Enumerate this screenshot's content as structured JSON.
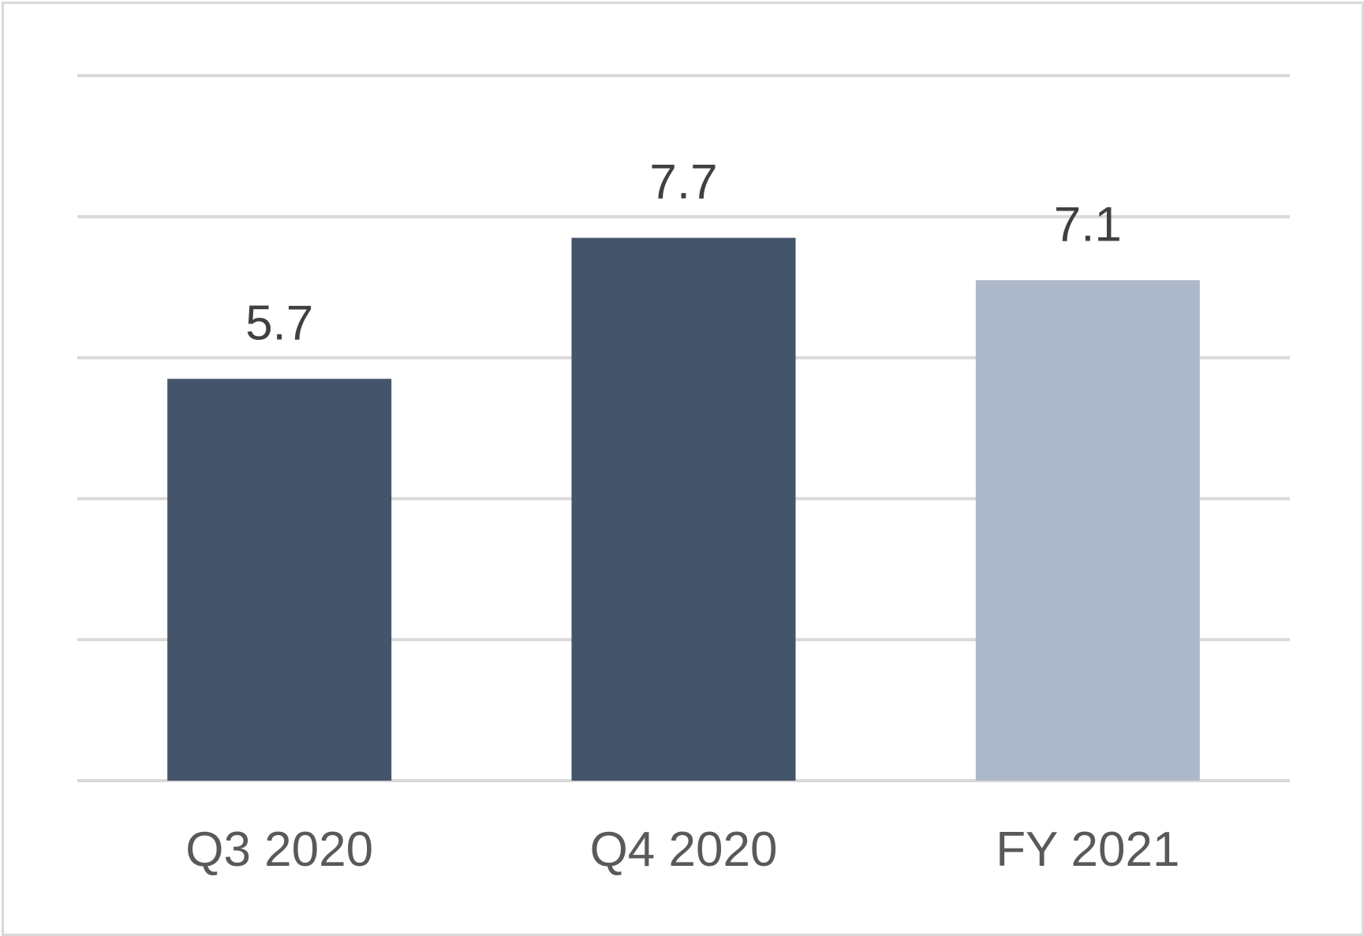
{
  "chart_data": {
    "type": "bar",
    "categories": [
      "Q3 2020",
      "Q4 2020",
      "FY 2021"
    ],
    "values": [
      5.7,
      7.7,
      7.1
    ],
    "data_labels": [
      "5.7",
      "7.7",
      "7.1"
    ],
    "title": "",
    "xlabel": "",
    "ylabel": "",
    "ylim": [
      0,
      10
    ],
    "gridline_values": [
      0,
      2,
      4,
      6,
      8,
      10
    ],
    "grid": true,
    "legend": "none",
    "bar_colors": [
      "#44546a",
      "#44546a",
      "#adb9ca"
    ],
    "gridline_color": "#d9d9d9",
    "label_color": "#404040",
    "tick_color": "#595959"
  }
}
